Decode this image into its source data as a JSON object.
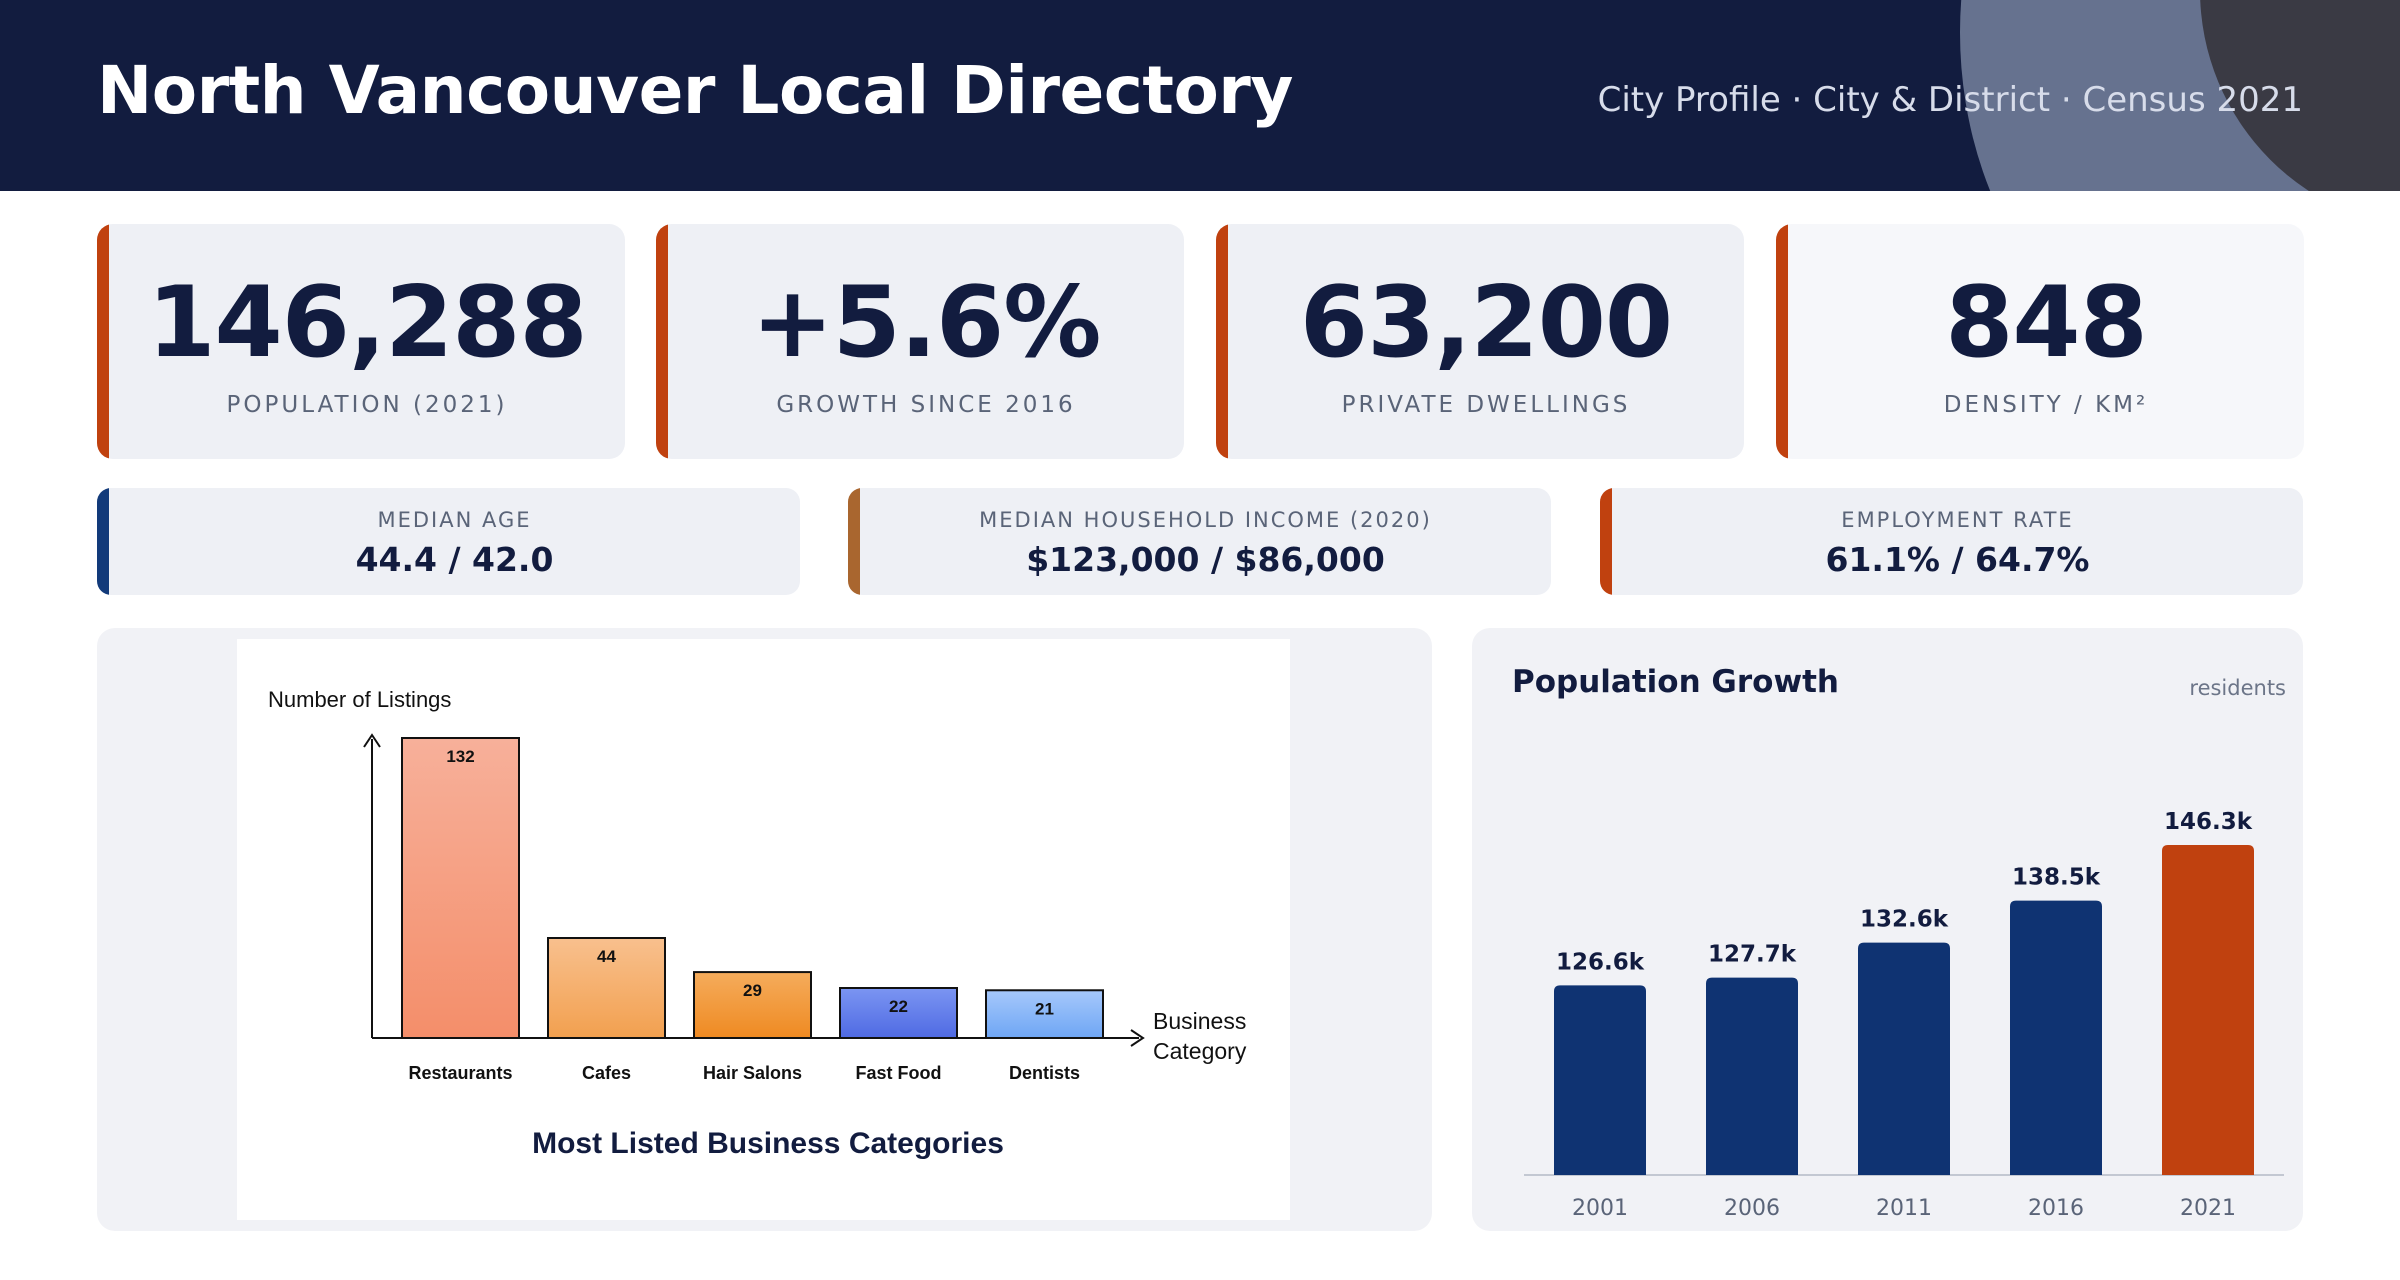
{
  "header": {
    "title": "North Vancouver Local Directory",
    "subtitle": "City Profile · City & District · Census 2021"
  },
  "kpis": [
    {
      "value": "146,288",
      "label": "POPULATION (2021)"
    },
    {
      "value": "+5.6%",
      "label": "GROWTH SINCE 2016"
    },
    {
      "value": "63,200",
      "label": "PRIVATE DWELLINGS"
    },
    {
      "value": "848",
      "label": "DENSITY / KM²"
    }
  ],
  "stats": [
    {
      "label": "MEDIAN AGE",
      "value": "44.4 / 42.0",
      "color": "#123a7a"
    },
    {
      "label": "MEDIAN HOUSEHOLD INCOME (2020)",
      "value": "$123,000 / $86,000",
      "color": "#a9662f"
    },
    {
      "label": "EMPLOYMENT RATE",
      "value": "61.1% / 64.7%",
      "color": "#c0410f"
    }
  ],
  "colors": {
    "accent": "#c0410f",
    "navy": "#121c3f",
    "bar_navy": "#0f3372"
  },
  "growth": {
    "title": "Population Growth",
    "unit": "residents"
  },
  "chart_data": [
    {
      "type": "bar",
      "title": "Most Listed Business Categories",
      "ylabel": "Number of Listings",
      "xlabel": "Business Category",
      "categories": [
        "Restaurants",
        "Cafes",
        "Hair Salons",
        "Fast Food",
        "Dentists"
      ],
      "values": [
        132,
        44,
        29,
        22,
        21
      ],
      "labels": [
        "132",
        "44",
        "29",
        "22",
        "21"
      ],
      "colors": [
        [
          "#f7b09a",
          "#f48e6a"
        ],
        [
          "#f8c08e",
          "#f2a04f"
        ],
        [
          "#f5ac5c",
          "#ef8a22"
        ],
        [
          "#7b95f2",
          "#4f6ae3"
        ],
        [
          "#a6c8fb",
          "#6ea6f5"
        ]
      ],
      "ylim": [
        0,
        140
      ],
      "grid": false
    },
    {
      "type": "bar",
      "title": "Population Growth",
      "unit": "residents",
      "categories": [
        "2001",
        "2006",
        "2011",
        "2016",
        "2021"
      ],
      "values": [
        126.6,
        127.7,
        132.6,
        138.5,
        146.3
      ],
      "labels": [
        "126.6k",
        "127.7k",
        "132.6k",
        "138.5k",
        "146.3k"
      ],
      "colors": [
        "#0f3372",
        "#0f3372",
        "#0f3372",
        "#0f3372",
        "#c0410f"
      ],
      "grid": false
    }
  ]
}
